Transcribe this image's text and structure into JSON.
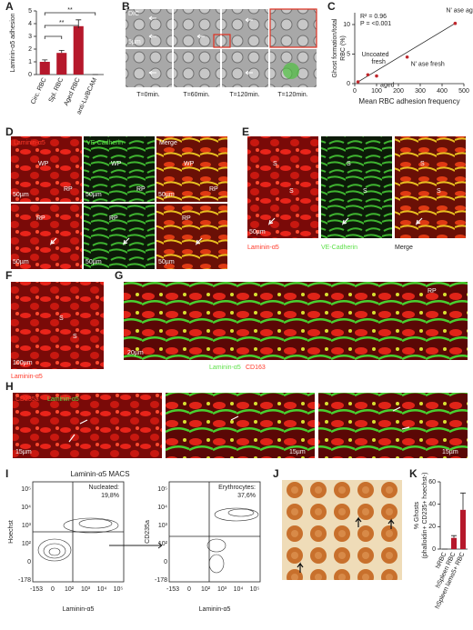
{
  "chart_data": [
    {
      "type": "bar",
      "ylabel": [
        "Laminin-α5 adhesion"
      ],
      "categories": [
        "Circ. RBC",
        "Spl. RBC",
        "Aged RBC",
        "anti-Lu/BCAM"
      ],
      "values": [
        1.0,
        1.7,
        3.8,
        0
      ],
      "errors": [
        0.15,
        0.2,
        0.5,
        0
      ],
      "color": "#b5182b",
      "ylim": [
        0,
        5
      ],
      "yticks": [
        0,
        1,
        2,
        3,
        4,
        5
      ],
      "annotations": [
        "**",
        "**"
      ]
    },
    {
      "type": "scatter",
      "ylabel": [
        "Ghost formation/total",
        "RBC (%)"
      ],
      "xlabel": "Mean RBC adhesion frequency",
      "x": [
        15,
        60,
        100,
        240,
        460
      ],
      "values": [
        0.3,
        1.5,
        1.3,
        4.5,
        10.2
      ],
      "point_labels": [
        "Uncoated",
        "fresh",
        "aged",
        "N' ase fresh",
        "N' ase aged"
      ],
      "color": "#c0282d",
      "xlim": [
        0,
        500
      ],
      "xticks": [
        0,
        100,
        200,
        300,
        400,
        500
      ],
      "ylim": [
        0,
        12
      ],
      "yticks": [
        0,
        5,
        10
      ],
      "annotations": [
        "R² = 0.96",
        "P = <0.001"
      ]
    },
    {
      "type": "bar",
      "ylabel": [
        "% Ghosts",
        "(phalloidin+ CD235+ hoechst-)"
      ],
      "categories": [
        "hRBC",
        "hSpleen RBC",
        "hSpleen lamα5+ RBC"
      ],
      "values": [
        0,
        10,
        35
      ],
      "errors": [
        0,
        2,
        15
      ],
      "color": "#b5182b",
      "ylim": [
        0,
        60
      ],
      "yticks": [
        0,
        20,
        40,
        60
      ]
    }
  ],
  "panel_letters": [
    "A",
    "B",
    "C",
    "D",
    "E",
    "F",
    "G",
    "H",
    "I",
    "J",
    "K"
  ],
  "panel_b": {
    "dic": "DIC",
    "scale": "5µm",
    "times": [
      "T=0min.",
      "T=60min.",
      "T=120min.",
      "T=120min."
    ]
  },
  "panel_d": {
    "channels": [
      "Laminin-α5",
      "VE-Cadherin",
      "Merge"
    ],
    "regions": [
      "WP",
      "RP"
    ],
    "scale": "50µm"
  },
  "panel_e": {
    "region": "S",
    "channels": [
      "Laminin-α5",
      "VE-Cadherin",
      "Merge"
    ],
    "scale": "50µm"
  },
  "panel_f": {
    "region": "S",
    "scale": "100µm",
    "channel": "Laminin-α5"
  },
  "panel_g": {
    "region": "RP",
    "scale": "20µm",
    "channels": [
      "Laminin-α5",
      "CD163"
    ]
  },
  "panel_h": {
    "channels": [
      "CD235a",
      "Laminin-α5"
    ],
    "scale": "15µm"
  },
  "panel_i": {
    "title": "Laminin-α5 MACS",
    "gates": [
      "Nucleated:",
      "Erythrocytes:"
    ],
    "percents": [
      "19,8%",
      "37,6%"
    ],
    "ylabels": [
      "Hoechst",
      "CD235a"
    ],
    "xlabel": "Laminin-α5",
    "yticks": [
      "10⁵",
      "10⁴",
      "10³",
      "10²",
      "0",
      "-178"
    ],
    "xticks": [
      "-153",
      "0",
      "10²",
      "10³",
      "10⁴",
      "10⁵"
    ]
  }
}
